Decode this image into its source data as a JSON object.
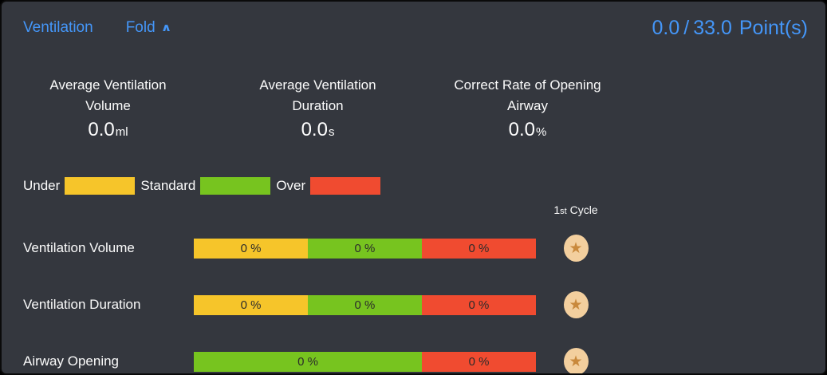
{
  "header": {
    "title": "Ventilation",
    "fold_label": "Fold",
    "score": {
      "current": "0.0",
      "separator": "/",
      "total": "33.0",
      "unit": "Point(s)"
    }
  },
  "icons": {
    "fold_caret": "∧",
    "star": "★"
  },
  "colors": {
    "panel_bg": "#34373e",
    "accent_blue": "#4496f8",
    "under_yellow": "#f6c52a",
    "standard_green": "#77c41f",
    "over_red": "#f04b30",
    "star_badge_bg": "#f3cf9e",
    "star_glyph": "#c9893c"
  },
  "stats": [
    {
      "label_line1": "Average Ventilation",
      "label_line2": "Volume",
      "value": "0.0",
      "unit": "ml"
    },
    {
      "label_line1": "Average Ventilation",
      "label_line2": "Duration",
      "value": "0.0",
      "unit": "s"
    },
    {
      "label_line1": "Correct Rate of Opening",
      "label_line2": "Airway",
      "value": "0.0",
      "unit": "%"
    }
  ],
  "legend": [
    {
      "label": "Under",
      "color": "#f6c52a"
    },
    {
      "label": "Standard",
      "color": "#77c41f"
    },
    {
      "label": "Over",
      "color": "#f04b30"
    }
  ],
  "cycle_header": {
    "number": "1",
    "ordinal": "st",
    "word": " Cycle"
  },
  "rows": [
    {
      "label": "Ventilation Volume",
      "segments": [
        {
          "text": "0 %",
          "color": "#f6c52a",
          "width_pct": 33.3
        },
        {
          "text": "0 %",
          "color": "#77c41f",
          "width_pct": 33.3
        },
        {
          "text": "0 %",
          "color": "#f04b30",
          "width_pct": 33.3
        }
      ]
    },
    {
      "label": "Ventilation Duration",
      "segments": [
        {
          "text": "0 %",
          "color": "#f6c52a",
          "width_pct": 33.3
        },
        {
          "text": "0 %",
          "color": "#77c41f",
          "width_pct": 33.3
        },
        {
          "text": "0 %",
          "color": "#f04b30",
          "width_pct": 33.3
        }
      ]
    },
    {
      "label": "Airway Opening",
      "segments": [
        {
          "text": "0 %",
          "color": "#77c41f",
          "width_pct": 66.7
        },
        {
          "text": "0 %",
          "color": "#f04b30",
          "width_pct": 33.3
        }
      ]
    }
  ]
}
